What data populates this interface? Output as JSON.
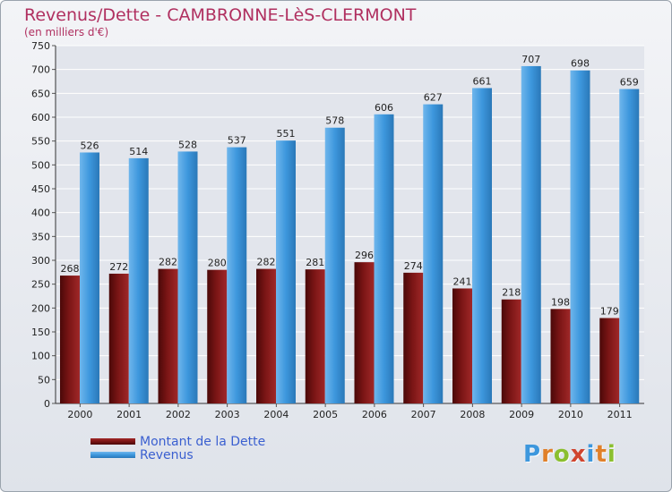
{
  "page": {
    "title": "Revenus/Dette - CAMBRONNE-LèS-CLERMONT",
    "subtitle": "(en milliers d'€)"
  },
  "colors": {
    "debt": "#7a1515",
    "revenue": "#3d97dd",
    "title": "#b03060",
    "legend_text": "#3a5fd0"
  },
  "logo": {
    "text": "Proxiti",
    "letter_colors": [
      "#3d97dd",
      "#e0802a",
      "#8bbf2f",
      "#d0452f",
      "#3d97dd",
      "#e0802a",
      "#8bbf2f"
    ]
  },
  "chart_data": {
    "type": "bar",
    "title": "Revenus/Dette - CAMBRONNE-LèS-CLERMONT",
    "subtitle": "(en milliers d'€)",
    "categories": [
      "2000",
      "2001",
      "2002",
      "2003",
      "2004",
      "2005",
      "2006",
      "2007",
      "2008",
      "2009",
      "2010",
      "2011"
    ],
    "series": [
      {
        "name": "Montant de la Dette",
        "values": [
          268,
          272,
          282,
          280,
          282,
          281,
          296,
          274,
          241,
          218,
          198,
          179
        ]
      },
      {
        "name": "Revenus",
        "values": [
          526,
          514,
          528,
          537,
          551,
          578,
          606,
          627,
          661,
          707,
          698,
          659
        ]
      }
    ],
    "ylim": [
      0,
      750
    ],
    "yticks": [
      0,
      50,
      100,
      150,
      200,
      250,
      300,
      350,
      400,
      450,
      500,
      550,
      600,
      650,
      700,
      750
    ],
    "grid": true,
    "legend_position": "bottom-left"
  }
}
